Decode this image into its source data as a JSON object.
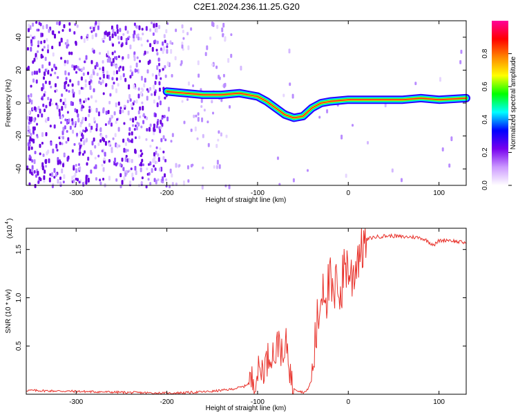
{
  "title": "C2E1.2024.236.11.25.G20",
  "chart_data": [
    {
      "type": "heatmap",
      "xlabel": "Height of straight line (km)",
      "ylabel": "Frequency (Hz)",
      "xlim": [
        -355,
        130
      ],
      "ylim": [
        -50,
        50
      ],
      "xticks": [
        -300,
        -200,
        -100,
        0,
        100
      ],
      "yticks": [
        -40,
        -20,
        0,
        20,
        40
      ],
      "colorbar": {
        "label": "Normalized spectral amplitude",
        "range": [
          0,
          1
        ],
        "ticks": [
          0.0,
          0.2,
          0.4,
          0.6,
          0.8
        ],
        "colors": [
          "#ffffff",
          "#cc99ff",
          "#7700ee",
          "#0000ff",
          "#00ffff",
          "#00ff00",
          "#ffff00",
          "#ff8800",
          "#ff0000",
          "#ff0099"
        ]
      },
      "signal_trace": {
        "x": [
          -200,
          -180,
          -160,
          -140,
          -120,
          -110,
          -100,
          -90,
          -80,
          -70,
          -60,
          -50,
          -40,
          -30,
          -20,
          0,
          20,
          40,
          60,
          80,
          100,
          130
        ],
        "y": [
          7,
          6,
          5,
          5,
          6,
          5,
          4,
          1,
          -3,
          -7,
          -9,
          -8,
          -3,
          0,
          1,
          2,
          2,
          2,
          2,
          3,
          2,
          3
        ]
      }
    },
    {
      "type": "line",
      "xlabel": "Height of straight line (km)",
      "ylabel": "SNR (10 * v/v)",
      "y_multiplier_label": "(x10",
      "y_multiplier_exp": "4",
      "xlim": [
        -355,
        130
      ],
      "ylim": [
        0,
        1.72
      ],
      "xticks": [
        -300,
        -200,
        -100,
        0,
        100
      ],
      "yticks": [
        0.5,
        1.0,
        1.5
      ],
      "ytick_labels": [
        "0.5",
        "1.0",
        "1.5"
      ],
      "color": "#e8312a",
      "series_x": [
        -355,
        -300,
        -250,
        -200,
        -170,
        -150,
        -130,
        -115,
        -105,
        -100,
        -92,
        -85,
        -80,
        -76,
        -72,
        -68,
        -62,
        -56,
        -50,
        -46,
        -40,
        -36,
        -32,
        -28,
        -24,
        -20,
        -16,
        -12,
        -8,
        -4,
        0,
        4,
        8,
        12,
        16,
        20,
        25,
        30,
        40,
        50,
        60,
        70,
        80,
        85,
        90,
        95,
        100,
        110,
        120,
        130
      ],
      "series_y": [
        0.04,
        0.03,
        0.02,
        0.01,
        0.02,
        0.03,
        0.05,
        0.08,
        0.15,
        0.22,
        0.3,
        0.45,
        0.4,
        0.62,
        0.28,
        0.55,
        0.08,
        0.04,
        0.02,
        0.03,
        0.15,
        0.6,
        0.85,
        1.2,
        1.05,
        1.15,
        0.9,
        1.25,
        1.0,
        1.4,
        1.3,
        1.2,
        1.35,
        1.5,
        1.55,
        1.6,
        1.62,
        1.63,
        1.64,
        1.64,
        1.63,
        1.63,
        1.62,
        1.6,
        1.57,
        1.55,
        1.59,
        1.6,
        1.58,
        1.57
      ]
    }
  ]
}
